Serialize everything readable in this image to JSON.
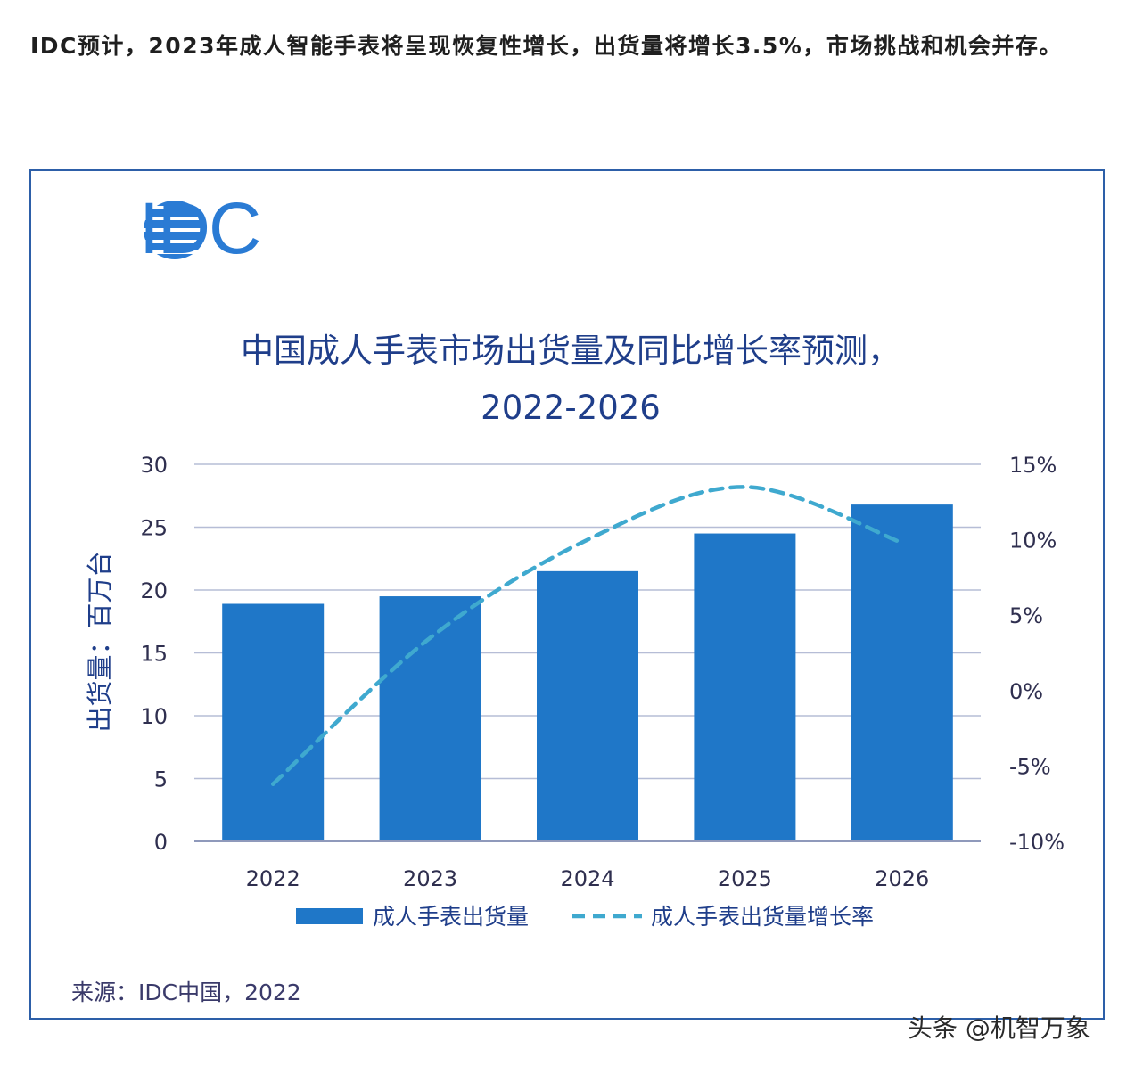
{
  "article": {
    "text": "IDC预计，2023年成人智能手表将呈现恢复性增长，出货量将增长3.5%，市场挑战和机会并存。"
  },
  "logo": {
    "text": "IDC",
    "name": "idc-logo"
  },
  "chart_data": {
    "type": "bar",
    "title": "中国成人手表市场出货量及同比增长率预测，",
    "subtitle": "2022-2026",
    "categories": [
      "2022",
      "2023",
      "2024",
      "2025",
      "2026"
    ],
    "ylabel": "出货量：百万台",
    "ylim": [
      0,
      30
    ],
    "yticks": [
      0,
      5,
      10,
      15,
      20,
      25,
      30
    ],
    "y2lim": [
      -10,
      15
    ],
    "y2ticks": [
      "-10%",
      "-5%",
      "0%",
      "5%",
      "10%",
      "15%"
    ],
    "y2tick_values": [
      -10,
      -5,
      0,
      5,
      10,
      15
    ],
    "series": [
      {
        "name": "成人手表出货量",
        "type": "bar",
        "axis": "left",
        "values": [
          18.9,
          19.5,
          21.5,
          24.5,
          26.8
        ]
      },
      {
        "name": "成人手表出货量增长率",
        "type": "line",
        "style": "dashed",
        "axis": "right",
        "values": [
          -6.2,
          3.5,
          10.0,
          13.5,
          9.8
        ]
      }
    ],
    "colors": {
      "bar": "#1f77c8",
      "line": "#3fa9cf",
      "grid": "#b6bdd6",
      "axis": "#8f99bb"
    },
    "legend": "bottom",
    "grid": true
  },
  "source": "来源：IDC中国，2022",
  "watermark": "头条 @机智万象"
}
